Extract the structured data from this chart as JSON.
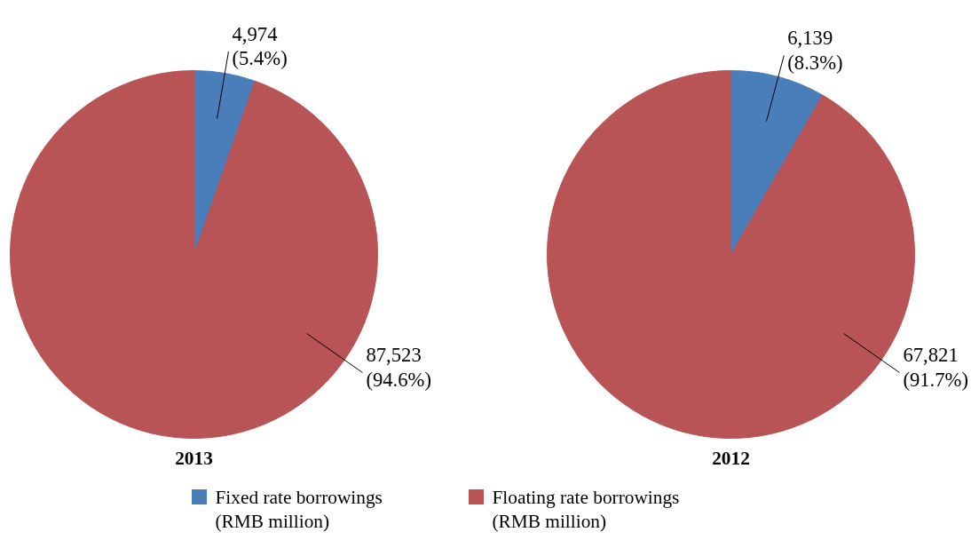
{
  "chart_data": [
    {
      "type": "pie",
      "title": "2013",
      "categories": [
        "Fixed rate borrowings\n(RMB million)",
        "Floating rate borrowings\n(RMB million)"
      ],
      "values": [
        4974,
        87523
      ],
      "colors": [
        "#4a7ebb",
        "#b85356"
      ],
      "value_labels": [
        "4,974\n(5.4%)",
        "87,523\n(94.6%)"
      ],
      "legend": "bottom"
    },
    {
      "type": "pie",
      "title": "2012",
      "categories": [
        null,
        null
      ],
      "values": [
        6139,
        67821
      ],
      "colors": [
        "#4a7ebb",
        "#b85356"
      ],
      "value_labels": [
        "6,139\n(8.3%)",
        "67,821\n(91.7%)"
      ]
    }
  ]
}
